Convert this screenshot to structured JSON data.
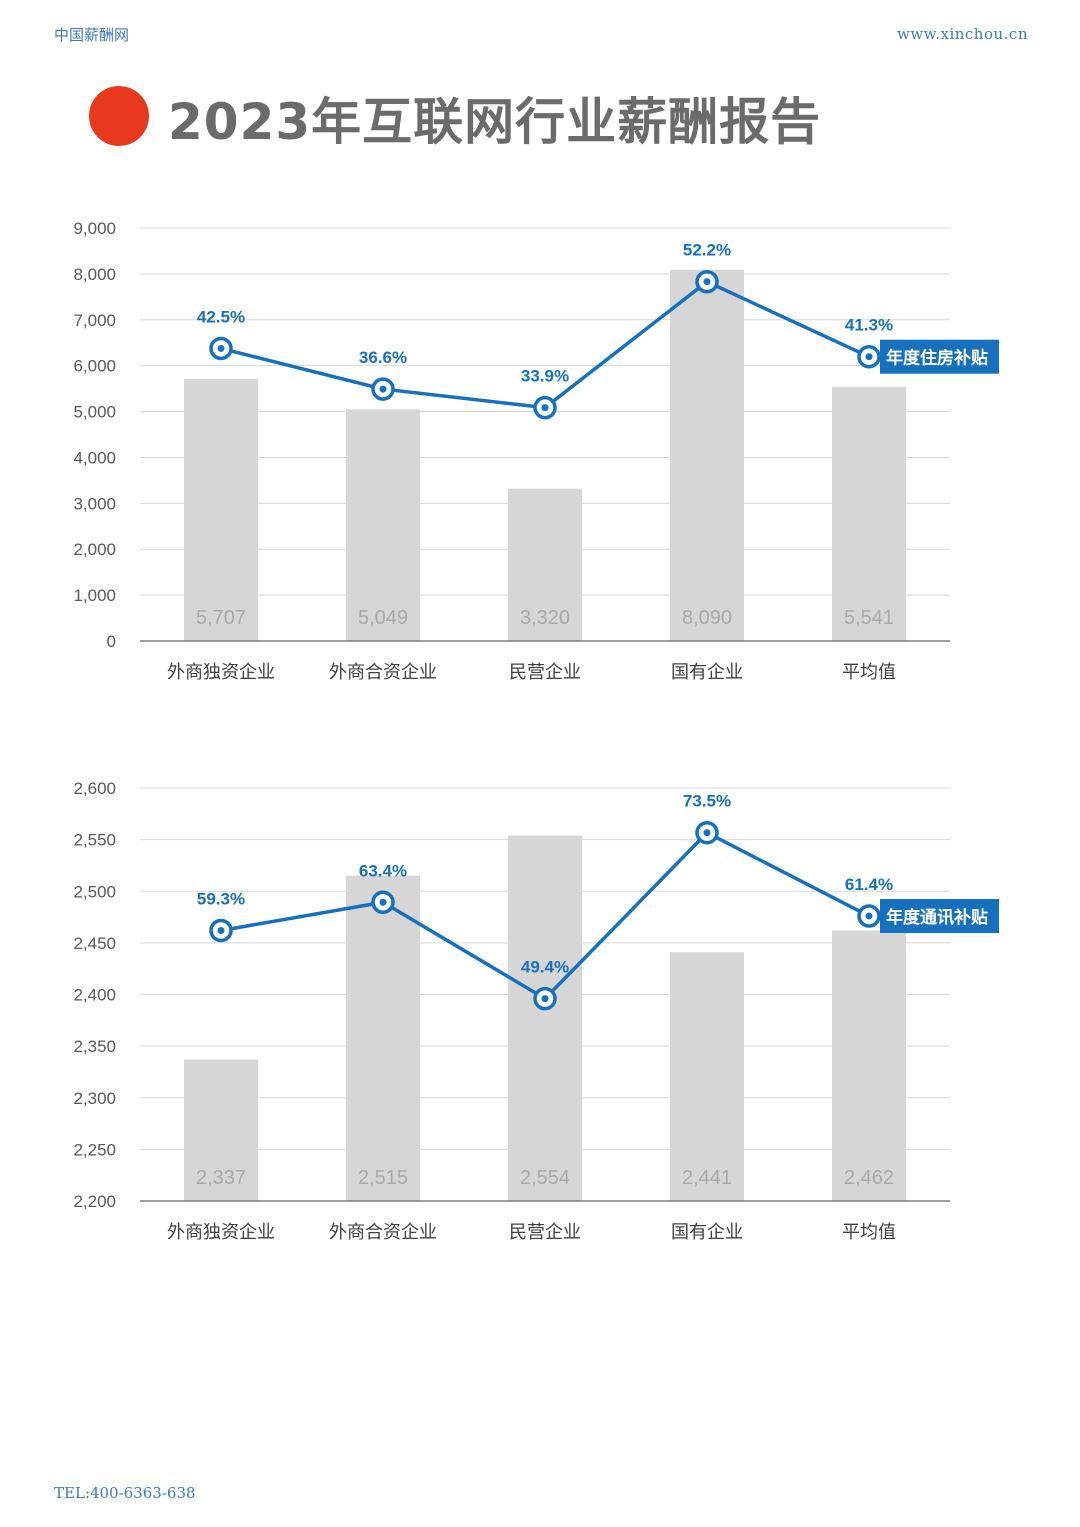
{
  "header": {
    "site_name": "中国薪酬网",
    "site_url": "www.xinchou.cn"
  },
  "title": "2023年互联网行业薪酬报告",
  "footer": {
    "tel": "TEL:400-6363-638"
  },
  "colors": {
    "accent_red": "#e8391d",
    "line_blue": "#1570bd",
    "bar_gray": "#d6d6d6",
    "bar_label_gray": "#a9a9a9",
    "header_blue": "#3e7bb8",
    "title_gray": "#6b6b6b",
    "axis_text": "#595959",
    "grid": "#d9d9d9"
  },
  "chart_data": [
    {
      "type": "bar",
      "categories": [
        "外商独资企业",
        "外商合资企业",
        "民营企业",
        "国有企业",
        "平均值"
      ],
      "series": [
        {
          "values": [
            5707,
            5049,
            3320,
            8090,
            5541
          ]
        },
        {
          "name": "年度住房补贴",
          "type": "line",
          "values": [
            42.5,
            36.6,
            33.9,
            52.2,
            41.3
          ],
          "unit": "%"
        }
      ],
      "bar_labels": [
        "5,707",
        "5,049",
        "3,320",
        "8,090",
        "5,541"
      ],
      "line_labels": [
        "42.5%",
        "36.6%",
        "33.9%",
        "52.2%",
        "41.3%"
      ],
      "line_series_name": "年度住房补贴",
      "ylim": [
        0,
        9000
      ],
      "yticks": [
        "0",
        "1,000",
        "2,000",
        "3,000",
        "4,000",
        "5,000",
        "6,000",
        "7,000",
        "8,000",
        "9,000"
      ],
      "line_ylim": [
        0,
        60
      ],
      "grid": true
    },
    {
      "type": "bar",
      "categories": [
        "外商独资企业",
        "外商合资企业",
        "民营企业",
        "国有企业",
        "平均值"
      ],
      "series": [
        {
          "values": [
            2337,
            2515,
            2554,
            2441,
            2462
          ]
        },
        {
          "name": "年度通讯补贴",
          "type": "line",
          "values": [
            59.3,
            63.4,
            49.4,
            73.5,
            61.4
          ],
          "unit": "%"
        }
      ],
      "bar_labels": [
        "2,337",
        "2,515",
        "2,554",
        "2,441",
        "2,462"
      ],
      "line_labels": [
        "59.3%",
        "63.4%",
        "49.4%",
        "73.5%",
        "61.4%"
      ],
      "line_series_name": "年度通讯补贴",
      "ylim": [
        2200,
        2600
      ],
      "yticks": [
        "2,200",
        "2,250",
        "2,300",
        "2,350",
        "2,400",
        "2,450",
        "2,500",
        "2,550",
        "2,600"
      ],
      "line_ylim": [
        20,
        80
      ],
      "grid": true
    }
  ]
}
